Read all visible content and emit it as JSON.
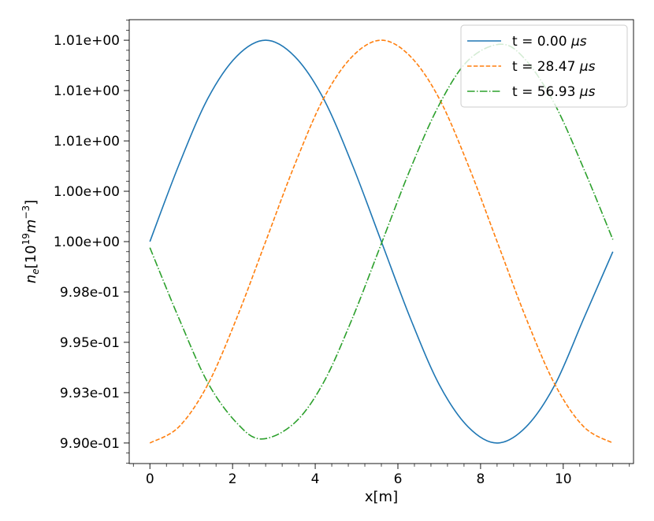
{
  "chart_data": {
    "type": "line",
    "xlabel": "x[m]",
    "ylabel": "n_e[10^19 m^-3]",
    "ylabel_parts": {
      "base": "n",
      "sub": "e",
      "bracket_open": "[10",
      "exp1": "19",
      "unit": "m",
      "exp2": "−3",
      "bracket_close": "]"
    },
    "xlim": [
      -0.5,
      11.7
    ],
    "ylim": [
      0.98898,
      1.01102
    ],
    "x_ticks": [
      0,
      2,
      4,
      6,
      8,
      10
    ],
    "x_tick_labels": [
      "0",
      "2",
      "4",
      "6",
      "8",
      "10"
    ],
    "y_ticks": [
      0.99,
      0.9925,
      0.995,
      0.9975,
      1.0,
      1.0025,
      1.005,
      1.0075,
      1.01
    ],
    "y_tick_labels": [
      "9.90e-01",
      "9.93e-01",
      "9.95e-01",
      "9.98e-01",
      "1.00e+00",
      "1.00e+00",
      "1.01e+00",
      "1.01e+00",
      "1.01e+00"
    ],
    "grid": false,
    "legend_position": "top-right",
    "x_domain": [
      0,
      11.2
    ],
    "series": [
      {
        "name": "t = 0.00 ",
        "unit": "μs",
        "color": "#1f77b4",
        "dash": "solid",
        "x": [
          0,
          0.7,
          1.4,
          2.1,
          2.8,
          3.5,
          4.2,
          4.9,
          5.6,
          6.3,
          7.0,
          7.7,
          8.4,
          9.1,
          9.8,
          10.5,
          11.2
        ],
        "y": [
          1.0,
          1.0038,
          1.0071,
          1.0092,
          1.01,
          1.0092,
          1.0071,
          1.0038,
          1.0,
          0.9962,
          0.9929,
          0.9908,
          0.99,
          0.9908,
          0.9929,
          0.9962,
          0.9995
        ]
      },
      {
        "name": "t = 28.47 ",
        "unit": "μs",
        "color": "#ff7f0e",
        "dash": "dashed",
        "x": [
          0,
          0.7,
          1.4,
          2.1,
          2.8,
          3.5,
          4.2,
          4.9,
          5.6,
          6.3,
          7.0,
          7.7,
          8.4,
          9.1,
          9.8,
          10.5,
          11.2
        ],
        "y": [
          0.99,
          0.9908,
          0.9929,
          0.9962,
          1.0,
          1.0038,
          1.0071,
          1.0092,
          1.01,
          1.0092,
          1.0071,
          1.0038,
          1.0,
          0.9962,
          0.9929,
          0.9908,
          0.99
        ]
      },
      {
        "name": "t = 56.93 ",
        "unit": "μs",
        "color": "#2ca02c",
        "dash": "dashdot",
        "x": [
          0,
          0.7,
          1.4,
          2.1,
          2.7,
          3.5,
          4.2,
          4.9,
          5.6,
          6.3,
          7.0,
          7.7,
          8.5,
          9.1,
          9.8,
          10.5,
          11.2
        ],
        "y": [
          0.9997,
          0.9962,
          0.993,
          0.991,
          0.9902,
          0.991,
          0.993,
          0.9962,
          0.9999,
          1.0036,
          1.0068,
          1.009,
          1.0098,
          1.009,
          1.0068,
          1.0036,
          1.0001
        ]
      }
    ]
  }
}
